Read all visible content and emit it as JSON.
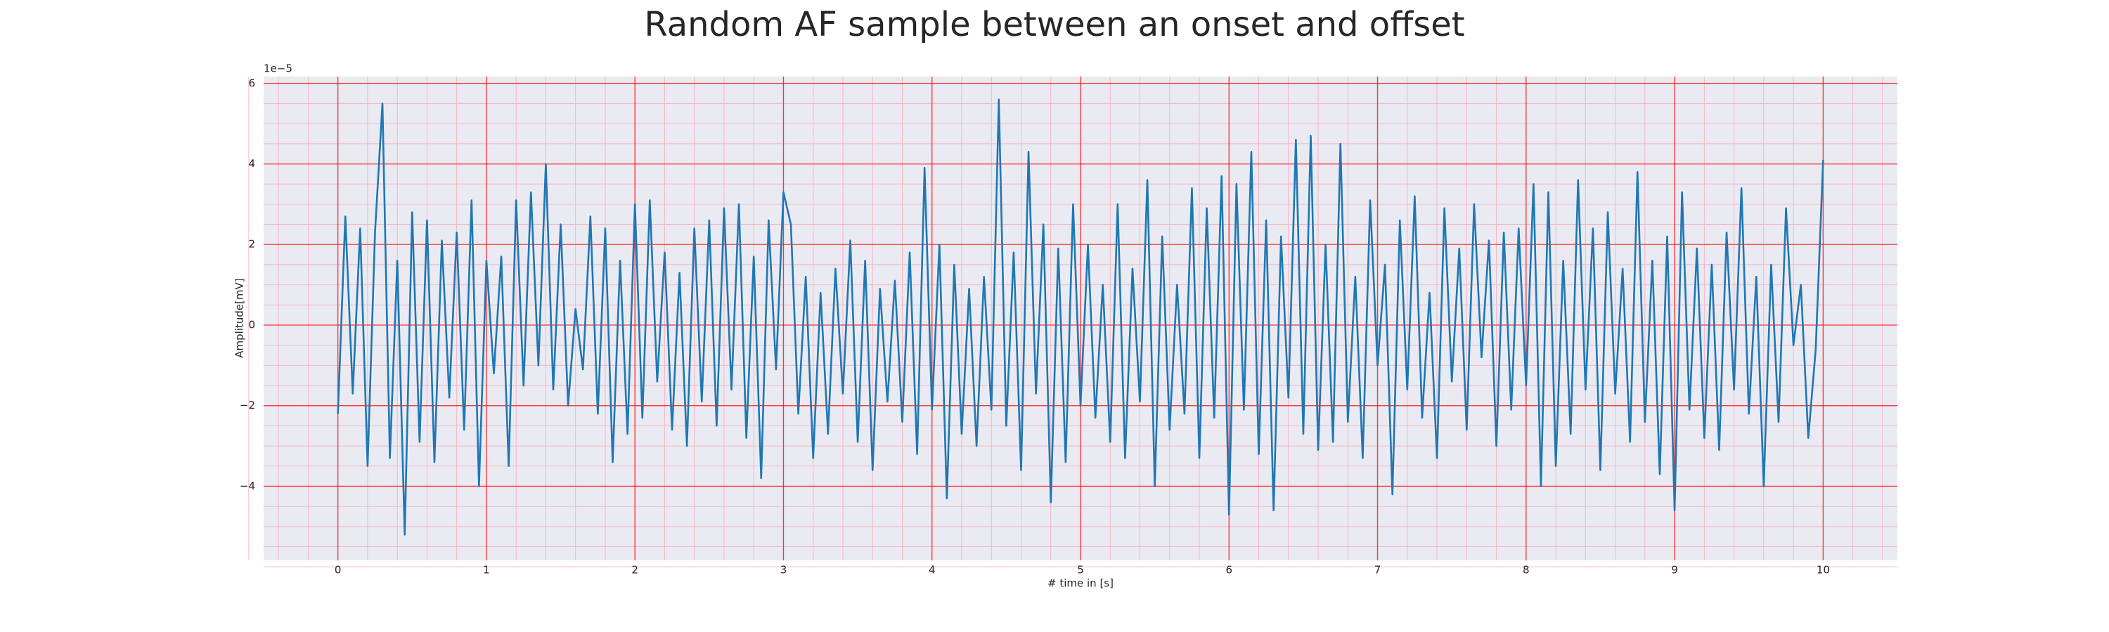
{
  "chart_data": {
    "type": "line",
    "title": "Random AF sample between an onset and offset",
    "x_label": "# time in [s]",
    "y_label": "Amplitude[mV]",
    "y_offset_text": "1e−5",
    "color": "#1f77b4",
    "grid": true,
    "grid_color": "#ff0000",
    "minor_grid": true,
    "background": "#eaeaf2",
    "xlim": [
      -0.5,
      10.5
    ],
    "xticks": [
      0,
      1,
      2,
      3,
      4,
      5,
      6,
      7,
      8,
      9,
      10
    ],
    "ylim": [
      -5.84,
      6.17
    ],
    "yticks": [
      {
        "value": -4,
        "label": "−4"
      },
      {
        "value": -2,
        "label": "−2"
      },
      0,
      2,
      4,
      6
    ],
    "x": [
      0,
      0.05,
      0.1,
      0.15,
      0.2,
      0.25,
      0.3,
      0.35,
      0.4,
      0.45,
      0.5,
      0.55,
      0.6,
      0.65,
      0.7,
      0.75,
      0.8,
      0.85,
      0.9,
      0.95,
      1,
      1.05,
      1.1,
      1.15,
      1.2,
      1.25,
      1.3,
      1.35,
      1.4,
      1.45,
      1.5,
      1.55,
      1.6,
      1.65,
      1.7,
      1.75,
      1.8,
      1.85,
      1.9,
      1.95,
      2,
      2.05,
      2.1,
      2.15,
      2.2,
      2.25,
      2.3,
      2.35,
      2.4,
      2.45,
      2.5,
      2.55,
      2.6,
      2.65,
      2.7,
      2.75,
      2.8,
      2.85,
      2.9,
      2.95,
      3,
      3.05,
      3.1,
      3.15,
      3.2,
      3.25,
      3.3,
      3.35,
      3.4,
      3.45,
      3.5,
      3.55,
      3.6,
      3.65,
      3.7,
      3.75,
      3.8,
      3.85,
      3.9,
      3.95,
      4,
      4.05,
      4.1,
      4.15,
      4.2,
      4.25,
      4.3,
      4.35,
      4.4,
      4.45,
      4.5,
      4.55,
      4.6,
      4.65,
      4.7,
      4.75,
      4.8,
      4.85,
      4.9,
      4.95,
      5,
      5.05,
      5.1,
      5.15,
      5.2,
      5.25,
      5.3,
      5.35,
      5.4,
      5.45,
      5.5,
      5.55,
      5.6,
      5.65,
      5.7,
      5.75,
      5.8,
      5.85,
      5.9,
      5.95,
      6,
      6.05,
      6.1,
      6.15,
      6.2,
      6.25,
      6.3,
      6.35,
      6.4,
      6.45,
      6.5,
      6.55,
      6.6,
      6.65,
      6.7,
      6.75,
      6.8,
      6.85,
      6.9,
      6.95,
      7,
      7.05,
      7.1,
      7.15,
      7.2,
      7.25,
      7.3,
      7.35,
      7.4,
      7.45,
      7.5,
      7.55,
      7.6,
      7.65,
      7.7,
      7.75,
      7.8,
      7.85,
      7.9,
      7.95,
      8,
      8.05,
      8.1,
      8.15,
      8.2,
      8.25,
      8.3,
      8.35,
      8.4,
      8.45,
      8.5,
      8.55,
      8.6,
      8.65,
      8.7,
      8.75,
      8.8,
      8.85,
      8.9,
      8.95,
      9,
      9.05,
      9.1,
      9.15,
      9.2,
      9.25,
      9.3,
      9.35,
      9.4,
      9.45,
      9.5,
      9.55,
      9.6,
      9.65,
      9.7,
      9.75,
      9.8,
      9.85,
      9.9,
      9.95,
      10
    ],
    "values": [
      -2.2,
      2.7,
      -1.7,
      2.4,
      -3.5,
      2.3,
      5.5,
      -3.3,
      1.6,
      -5.2,
      2.8,
      -2.9,
      2.6,
      -3.4,
      2.1,
      -1.8,
      2.3,
      -2.6,
      3.1,
      -4.0,
      1.6,
      -1.2,
      1.7,
      -3.5,
      3.1,
      -1.5,
      3.3,
      -1.0,
      4.0,
      -1.6,
      2.5,
      -2.0,
      0.4,
      -1.1,
      2.7,
      -2.2,
      2.4,
      -3.4,
      1.6,
      -2.7,
      3.0,
      -2.3,
      3.1,
      -1.4,
      1.8,
      -2.6,
      1.3,
      -3.0,
      2.4,
      -1.9,
      2.6,
      -2.5,
      2.9,
      -1.6,
      3.0,
      -2.8,
      1.7,
      -3.8,
      2.6,
      -1.1,
      3.3,
      2.5,
      -2.2,
      1.2,
      -3.3,
      0.8,
      -2.7,
      1.4,
      -1.7,
      2.1,
      -2.9,
      1.6,
      -3.6,
      0.9,
      -1.9,
      1.1,
      -2.4,
      1.8,
      -3.2,
      3.9,
      -2.1,
      2.0,
      -4.3,
      1.5,
      -2.7,
      0.9,
      -3.0,
      1.2,
      -2.1,
      5.6,
      -2.5,
      1.8,
      -3.6,
      4.3,
      -1.7,
      2.5,
      -4.4,
      1.9,
      -3.4,
      3.0,
      -2.0,
      2.0,
      -2.3,
      1.0,
      -2.9,
      3.0,
      -3.3,
      1.4,
      -1.9,
      3.6,
      -4.0,
      2.2,
      -2.6,
      1.0,
      -2.2,
      3.4,
      -3.3,
      2.9,
      -2.3,
      3.7,
      -4.7,
      3.5,
      -2.1,
      4.3,
      -3.2,
      2.6,
      -4.6,
      2.2,
      -1.8,
      4.6,
      -2.7,
      4.7,
      -3.1,
      2.0,
      -2.9,
      4.5,
      -2.4,
      1.2,
      -3.3,
      3.1,
      -1.0,
      1.5,
      -4.2,
      2.6,
      -1.6,
      3.2,
      -2.3,
      0.8,
      -3.3,
      2.9,
      -1.4,
      1.9,
      -2.6,
      3.0,
      -0.8,
      2.1,
      -3.0,
      2.3,
      -2.1,
      2.4,
      -1.5,
      3.5,
      -4.0,
      3.3,
      -3.5,
      1.6,
      -2.7,
      3.6,
      -1.6,
      2.4,
      -3.6,
      2.8,
      -1.7,
      1.4,
      -2.9,
      3.8,
      -2.4,
      1.6,
      -3.7,
      2.2,
      -4.6,
      3.3,
      -2.1,
      1.9,
      -2.8,
      1.5,
      -3.1,
      2.3,
      -1.6,
      3.4,
      -2.2,
      1.2,
      -4.0,
      1.5,
      -2.4,
      2.9,
      -0.5,
      1.0,
      -2.8,
      -0.6,
      4.1
    ]
  }
}
